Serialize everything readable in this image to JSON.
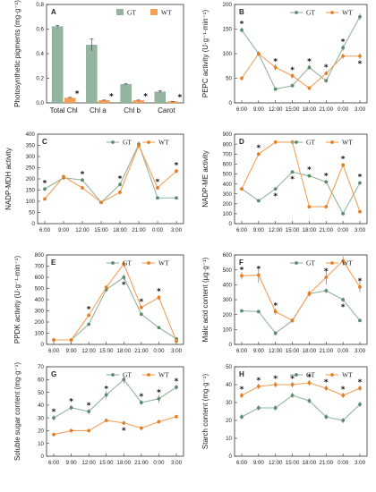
{
  "colors": {
    "gt": "#94b49f",
    "gt_dark": "#5b8a6b",
    "wt": "#f4a05a",
    "wt_dark": "#e67e22"
  },
  "x_times": [
    "6:00",
    "9:00",
    "12:00",
    "15:00",
    "18:00",
    "21:00",
    "0:00",
    "3:00"
  ],
  "chart_data": [
    {
      "type": "bar",
      "panel": "A",
      "ylabel": "Photosynthetic pigments (mg·g⁻¹)",
      "categories": [
        "Total Chl",
        "Chl a",
        "Chl b",
        "Carot"
      ],
      "ylim": [
        0,
        0.8
      ],
      "yticks": [
        "0.0",
        "0.2",
        "0.4",
        "0.6",
        "0.8"
      ],
      "series": [
        {
          "name": "GT",
          "values": [
            0.62,
            0.47,
            0.15,
            0.09
          ],
          "errors": [
            0.01,
            0.05,
            0.005,
            0.01
          ]
        },
        {
          "name": "WT",
          "values": [
            0.04,
            0.02,
            0.02,
            0.01
          ],
          "errors": [
            0.005,
            0.003,
            0.003,
            0.002
          ]
        }
      ],
      "significance": [
        "*",
        "*",
        "*",
        "*"
      ]
    },
    {
      "type": "line",
      "panel": "B",
      "ylabel": "PEPC activity (U·g⁻¹·min⁻¹)",
      "ylim": [
        0,
        200
      ],
      "yticks": [
        "0",
        "50",
        "100",
        "150",
        "200"
      ],
      "series": [
        {
          "name": "GT",
          "values": [
            148,
            100,
            28,
            35,
            72,
            45,
            112,
            175
          ],
          "errors": [
            5,
            4,
            3,
            4,
            5,
            4,
            6,
            7
          ]
        },
        {
          "name": "WT",
          "values": [
            50,
            100,
            72,
            55,
            30,
            60,
            95,
            95
          ],
          "errors": [
            4,
            5,
            6,
            5,
            4,
            4,
            5,
            6
          ]
        }
      ],
      "significance": [
        "*",
        "",
        "*",
        "*",
        "*",
        "*",
        "*",
        "*"
      ]
    },
    {
      "type": "line",
      "panel": "C",
      "ylabel": "NADP-MDH activity",
      "ylim": [
        0,
        400
      ],
      "yticks": [
        "0",
        "50",
        "100",
        "150",
        "200",
        "250",
        "300",
        "350",
        "400"
      ],
      "series": [
        {
          "name": "GT",
          "values": [
            155,
            205,
            195,
            95,
            175,
            355,
            115,
            115
          ],
          "errors": [
            8,
            8,
            8,
            6,
            10,
            12,
            6,
            6
          ]
        },
        {
          "name": "WT",
          "values": [
            110,
            210,
            160,
            95,
            140,
            350,
            160,
            235
          ],
          "errors": [
            7,
            9,
            8,
            6,
            9,
            12,
            8,
            10
          ]
        }
      ],
      "significance": [
        "*",
        "",
        "*",
        "",
        "*",
        "",
        "*",
        "*"
      ]
    },
    {
      "type": "line",
      "panel": "D",
      "ylabel": "NADP-ME activity",
      "ylim": [
        0,
        900
      ],
      "yticks": [
        "0",
        "100",
        "200",
        "300",
        "400",
        "500",
        "600",
        "700",
        "800",
        "900"
      ],
      "series": [
        {
          "name": "GT",
          "values": [
            350,
            230,
            350,
            520,
            480,
            420,
            100,
            410
          ],
          "errors": [
            15,
            12,
            15,
            15,
            15,
            15,
            10,
            15
          ]
        },
        {
          "name": "WT",
          "values": [
            350,
            700,
            820,
            820,
            170,
            170,
            590,
            120
          ],
          "errors": [
            15,
            20,
            20,
            20,
            10,
            10,
            20,
            10
          ]
        }
      ],
      "significance": [
        "",
        "*",
        "*",
        "*",
        "*",
        "*",
        "*",
        "*"
      ]
    },
    {
      "type": "line",
      "panel": "E",
      "ylabel": "PPDK activity (U·g⁻¹·min⁻¹)",
      "ylim": [
        0,
        800
      ],
      "yticks": [
        "0",
        "100",
        "200",
        "300",
        "400",
        "500",
        "600",
        "700",
        "800"
      ],
      "series": [
        {
          "name": "GT",
          "values": [
            40,
            40,
            180,
            490,
            600,
            270,
            150,
            50
          ],
          "errors": [
            3,
            3,
            12,
            20,
            25,
            15,
            10,
            5
          ]
        },
        {
          "name": "WT",
          "values": [
            40,
            40,
            260,
            510,
            720,
            330,
            420,
            30
          ],
          "errors": [
            3,
            3,
            15,
            20,
            25,
            15,
            20,
            3
          ]
        }
      ],
      "significance": [
        "",
        "",
        "*",
        "",
        "*",
        "*",
        "*",
        ""
      ]
    },
    {
      "type": "line",
      "panel": "F",
      "ylabel": "Malic acid content (μg·g⁻¹)",
      "ylim": [
        0,
        600
      ],
      "yticks": [
        "0",
        "100",
        "200",
        "300",
        "400",
        "500",
        "600"
      ],
      "series": [
        {
          "name": "GT",
          "values": [
            225,
            220,
            75,
            160,
            340,
            360,
            300,
            160
          ],
          "errors": [
            10,
            10,
            15,
            10,
            15,
            15,
            15,
            10
          ]
        },
        {
          "name": "WT",
          "values": [
            460,
            465,
            220,
            160,
            340,
            450,
            560,
            385
          ],
          "errors": [
            25,
            50,
            20,
            15,
            20,
            50,
            30,
            35
          ]
        }
      ],
      "significance": [
        "*",
        "*",
        "*",
        "",
        "",
        "*",
        "*",
        "*"
      ]
    },
    {
      "type": "line",
      "panel": "G",
      "ylabel": "Soluble sugar content (mg·g⁻¹)",
      "ylim": [
        0,
        70
      ],
      "yticks": [
        "0",
        "10",
        "20",
        "30",
        "40",
        "50",
        "60",
        "70"
      ],
      "series": [
        {
          "name": "GT",
          "values": [
            30,
            38,
            35,
            48,
            60,
            42,
            45,
            54
          ],
          "errors": [
            2,
            2,
            2,
            3,
            3,
            2,
            3,
            2
          ]
        },
        {
          "name": "WT",
          "values": [
            17,
            20,
            20,
            28,
            26,
            22,
            27,
            31
          ],
          "errors": [
            1.5,
            1.5,
            1.5,
            1.5,
            1.5,
            1.5,
            1.5,
            1.5
          ]
        }
      ],
      "significance": [
        "*",
        "*",
        "*",
        "*",
        "*",
        "*",
        "*",
        "*"
      ]
    },
    {
      "type": "line",
      "panel": "H",
      "ylabel": "Starch content (mg·g⁻¹)",
      "ylim": [
        0,
        50
      ],
      "yticks": [
        "0",
        "10",
        "20",
        "30",
        "40",
        "50"
      ],
      "series": [
        {
          "name": "GT",
          "values": [
            22,
            27,
            27,
            34,
            31,
            22,
            20,
            29
          ],
          "errors": [
            1.5,
            1.5,
            1.5,
            1.5,
            1.5,
            1.5,
            1.5,
            1.5
          ]
        },
        {
          "name": "WT",
          "values": [
            34,
            39,
            40,
            40,
            41,
            38,
            34,
            38
          ],
          "errors": [
            1.5,
            1.5,
            1.5,
            1.5,
            1.5,
            1.5,
            1.5,
            1.5
          ]
        }
      ],
      "significance": [
        "*",
        "*",
        "*",
        "*",
        "*",
        "*",
        "*",
        "*"
      ]
    }
  ]
}
